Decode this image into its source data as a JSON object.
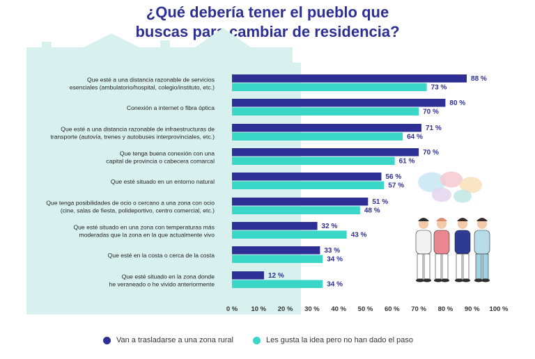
{
  "title_lines": [
    "¿Qué debería tener el pueblo que",
    "buscas para cambiar de residencia?"
  ],
  "colors": {
    "rural": "#2e2f95",
    "idea": "#3ad6c7",
    "background_shape": "#d9f1ee",
    "label_text": "#222222",
    "value_text": "#2e2f95"
  },
  "chart_data": {
    "type": "bar",
    "orientation": "horizontal",
    "title": "¿Qué debería tener el pueblo que buscas para cambiar de residencia?",
    "categories": [
      [
        "Que esté a una distancia razonable de servicios",
        "esenciales (ambulatorio/hospital, colegio/instituto, etc.)"
      ],
      [
        "Conexión a internet o fibra óptica"
      ],
      [
        "Que esté a una distancia razonable de infraestructuras de",
        "transporte (autovía, trenes y autobuses interprovinciales, etc.)"
      ],
      [
        "Que tenga buena conexión con una",
        "capital de provincia o cabecera comarcal"
      ],
      [
        "Que esté situado en un entorno natural"
      ],
      [
        "Que tenga posibilidades de ocio o cercano a una zona con ocio",
        "(cine, salas de fiesta, polideportivo, centro comercial, etc.)"
      ],
      [
        "Que esté situado en una zona con temperaturas más",
        "moderadas que la zona en la que actualmente vivo"
      ],
      [
        "Que esté en la costa o cerca de la costa"
      ],
      [
        "Que esté situado en la zona donde",
        "he veraneado o he vivido anteriormente"
      ]
    ],
    "series": [
      {
        "name": "Van a trasladarse a una zona rural",
        "values": [
          88,
          80,
          71,
          70,
          56,
          51,
          32,
          33,
          12
        ]
      },
      {
        "name": "Les gusta la idea pero no han dado el paso",
        "values": [
          73,
          70,
          64,
          61,
          57,
          48,
          43,
          34,
          34
        ]
      }
    ],
    "value_suffix": " %",
    "xlim": [
      0,
      100
    ],
    "ticks": [
      0,
      10,
      20,
      30,
      40,
      50,
      60,
      70,
      80,
      90,
      100
    ],
    "tick_labels": [
      "0 %",
      "10 %",
      "20 %",
      "30 %",
      "40 %",
      "50 %",
      "60 %",
      "70 %",
      "80 %",
      "90 %",
      "100 %"
    ],
    "grid": false,
    "legend_position": "bottom"
  },
  "legend": [
    {
      "label": "Van a trasladarse a una zona rural",
      "color": "#2e2f95"
    },
    {
      "label": "Les gusta la idea pero no han dado el paso",
      "color": "#3ad6c7"
    }
  ]
}
